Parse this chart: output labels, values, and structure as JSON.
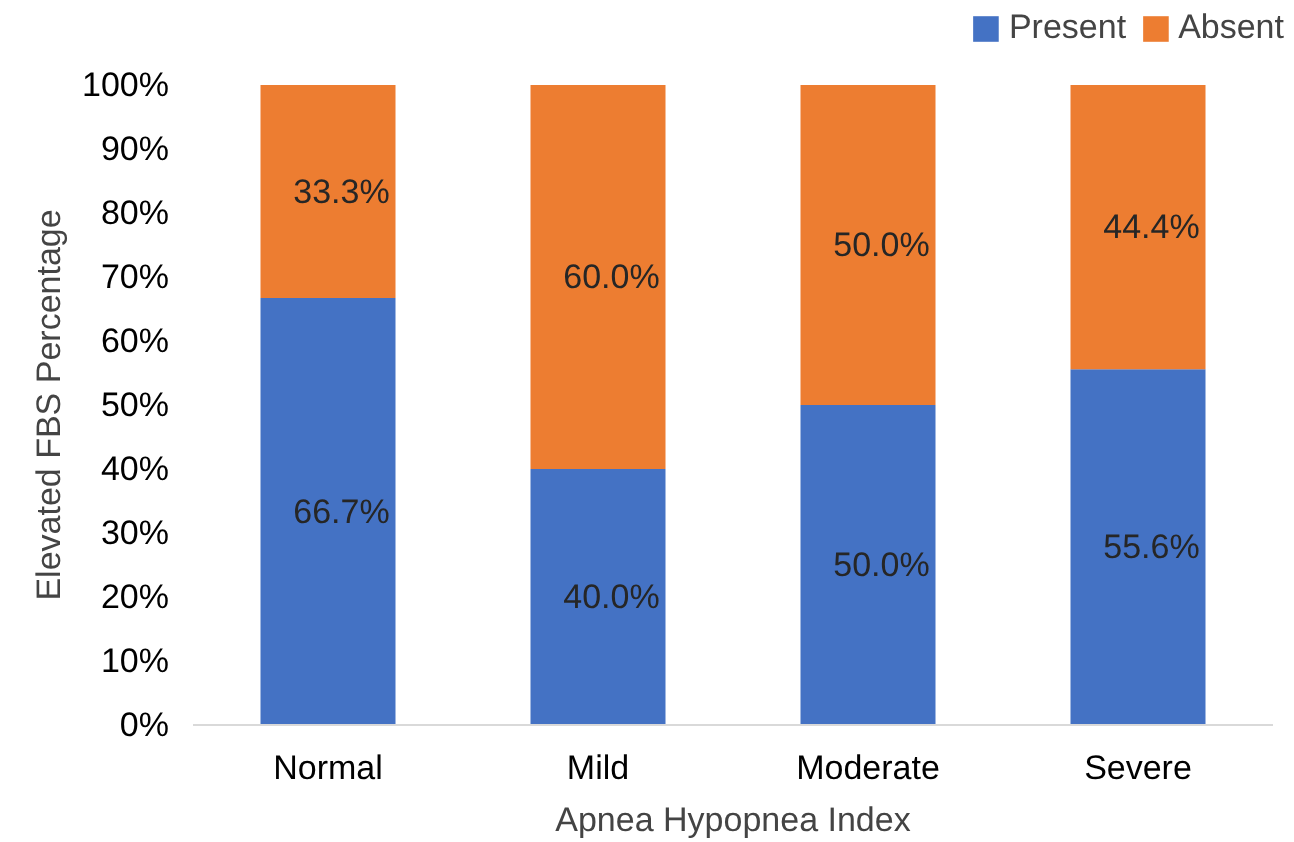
{
  "chart_data": {
    "type": "bar",
    "stacked": true,
    "xlabel": "Apnea Hypopnea Index",
    "ylabel": "Elevated FBS Percentage",
    "categories": [
      "Normal",
      "Mild",
      "Moderate",
      "Severe"
    ],
    "series": [
      {
        "name": "Present",
        "color": "#4472c4",
        "values": [
          66.7,
          40.0,
          50.0,
          55.6
        ],
        "value_labels": [
          "66.7%",
          "40.0%",
          "50.0%",
          "55.6%"
        ]
      },
      {
        "name": "Absent",
        "color": "#ed7d31",
        "values": [
          33.3,
          60.0,
          50.0,
          44.4
        ],
        "value_labels": [
          "33.3%",
          "60.0%",
          "50.0%",
          "44.4%"
        ]
      }
    ],
    "ylim": [
      0,
      100
    ],
    "yticks": [
      {
        "value": 0,
        "label": "0%"
      },
      {
        "value": 10,
        "label": "10%"
      },
      {
        "value": 20,
        "label": "20%"
      },
      {
        "value": 30,
        "label": "30%"
      },
      {
        "value": 40,
        "label": "40%"
      },
      {
        "value": 50,
        "label": "50%"
      },
      {
        "value": 60,
        "label": "60%"
      },
      {
        "value": 70,
        "label": "70%"
      },
      {
        "value": 80,
        "label": "80%"
      },
      {
        "value": 90,
        "label": "90%"
      },
      {
        "value": 100,
        "label": "100%"
      }
    ],
    "grid": false,
    "legend": "top right"
  }
}
